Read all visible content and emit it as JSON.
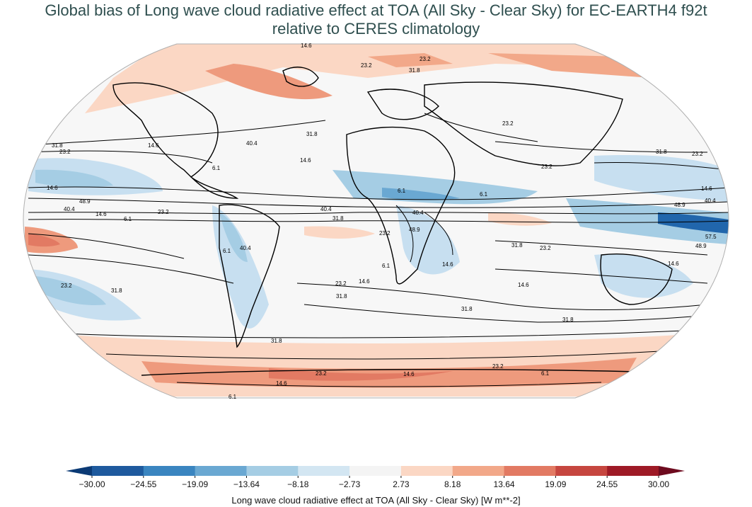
{
  "title": {
    "line1": "Global bias of Long wave cloud radiative effect at TOA (All Sky - Clear Sky) for EC-EARTH4 f92t",
    "line2": "relative to CERES climatology"
  },
  "map": {
    "projection": "Robinson",
    "contour_labels": [
      "14.6",
      "23.2",
      "31.8",
      "23.2",
      "31.8",
      "40.4",
      "14.6",
      "23.2",
      "14.6",
      "31.8",
      "48.9",
      "40.4",
      "14.6",
      "23.2",
      "6.1",
      "40.4",
      "31.8",
      "23.2",
      "6.1",
      "40.4",
      "48.9",
      "6.1",
      "14.6",
      "6.1",
      "14.6",
      "23.2",
      "31.8",
      "31.8",
      "23.2",
      "6.1",
      "40.4",
      "31.8",
      "23.2",
      "14.6",
      "48.9",
      "40.4",
      "57.5",
      "48.9",
      "31.8",
      "23.2",
      "14.6",
      "23.2",
      "31.8",
      "31.8",
      "14.6",
      "6.1",
      "14.6",
      "23.2",
      "31.8",
      "23.2",
      "6.1",
      "14.6",
      "23.2",
      "14.6",
      "6.1"
    ],
    "colors": {
      "deep_blue": "#2166ac",
      "mid_blue": "#6aa8d2",
      "light_blue": "#c7dff0",
      "neutral": "#f7f7f7",
      "light_red": "#fbd7c4",
      "mid_red": "#ee9a7d",
      "deep_red": "#c6463f"
    }
  },
  "colorbar": {
    "ticks": [
      "−30.00",
      "−24.55",
      "−19.09",
      "−13.64",
      "−8.18",
      "−2.73",
      "2.73",
      "8.18",
      "13.64",
      "19.09",
      "24.55",
      "30.00"
    ],
    "colors": [
      "#1e5a9e",
      "#3a85c0",
      "#6aa8d2",
      "#a5cde4",
      "#d3e6f2",
      "#f4f4f4",
      "#fbd7c4",
      "#f2a889",
      "#e27a63",
      "#c6463f",
      "#9e1a26"
    ],
    "extend_colors": {
      "low": "#0b3a75",
      "high": "#6e0b1f"
    },
    "label": "Long wave cloud radiative effect at TOA (All Sky - Clear Sky) [W m**-2]"
  }
}
